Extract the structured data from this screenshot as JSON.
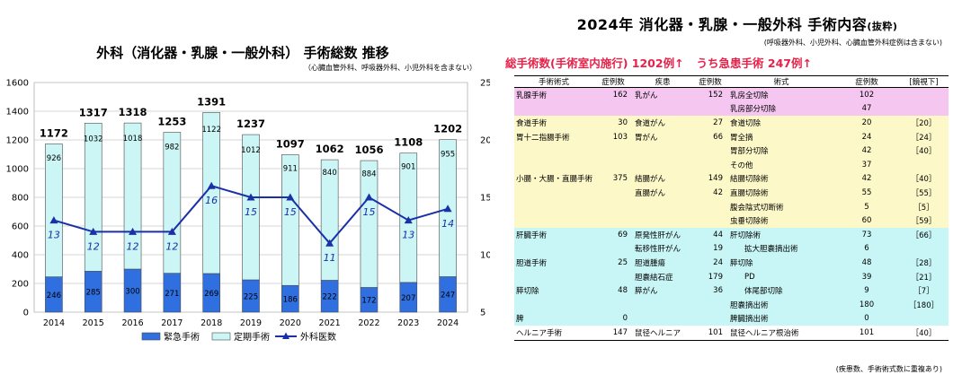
{
  "chart_data": {
    "type": "bar",
    "title": "外科（消化器・乳腺・一般外科） 手術総数 推移",
    "subtitle": "（心臓血管外科、呼吸器外科、小児外科を含まない）",
    "categories": [
      "2014",
      "2015",
      "2016",
      "2017",
      "2018",
      "2019",
      "2020",
      "2021",
      "2022",
      "2023",
      "2024"
    ],
    "series": [
      {
        "name": "緊急手術",
        "kind": "bar",
        "stack": "total",
        "color": "#2f6fe0",
        "values": [
          246,
          285,
          300,
          271,
          269,
          225,
          186,
          222,
          172,
          207,
          247
        ]
      },
      {
        "name": "定期手術",
        "kind": "bar",
        "stack": "total",
        "color": "#ccf5f5",
        "values": [
          926,
          1032,
          1018,
          982,
          1122,
          1012,
          911,
          840,
          884,
          901,
          955
        ]
      },
      {
        "name": "外科医数",
        "kind": "line",
        "axis": "right",
        "color": "#1a2fa8",
        "values": [
          13,
          12,
          12,
          12,
          16,
          15,
          15,
          11,
          15,
          13,
          14
        ]
      }
    ],
    "totals": [
      1172,
      1317,
      1318,
      1253,
      1391,
      1237,
      1097,
      1062,
      1056,
      1108,
      1202
    ],
    "ylim": [
      0,
      1600
    ],
    "yticks": [
      0,
      200,
      400,
      600,
      800,
      1000,
      1200,
      1400,
      1600
    ],
    "y2lim": [
      5,
      25
    ],
    "y2ticks": [
      5,
      10,
      15,
      20,
      25
    ],
    "grid": true,
    "legend": "bottom"
  },
  "table": {
    "title_main": "2024年 消化器・乳腺・一般外科 手術内容",
    "title_suffix": "(抜粋)",
    "note": "(呼吸器外科、小児外科、心臓血管外科症例は含まない)",
    "summary_1": "総手術数(手術室内施行) 1202例↑",
    "summary_2": "うち急患手術 247例↑",
    "headers": [
      "手術術式",
      "症例数",
      "疾患",
      "症例数",
      "術式",
      "症例数",
      "[鏡視下]"
    ],
    "rows": [
      {
        "g": "pink",
        "c": [
          "乳腺手術",
          "162",
          "乳がん",
          "152",
          "乳房全切除",
          "102",
          ""
        ]
      },
      {
        "g": "pink",
        "c": [
          "",
          "",
          "",
          "",
          "乳房部分切除",
          "47",
          ""
        ]
      },
      {
        "g": "yellow",
        "c": [
          "食道手術",
          "30",
          "食道がん",
          "27",
          "食道切除",
          "20",
          "［20］"
        ]
      },
      {
        "g": "yellow",
        "c": [
          "胃十二指腸手術",
          "103",
          "胃がん",
          "66",
          "胃全摘",
          "24",
          "［24］"
        ]
      },
      {
        "g": "yellow",
        "c": [
          "",
          "",
          "",
          "",
          "胃部分切除",
          "42",
          "［40］"
        ]
      },
      {
        "g": "yellow",
        "c": [
          "",
          "",
          "",
          "",
          "その他",
          "37",
          ""
        ]
      },
      {
        "g": "yellow",
        "c": [
          "小腸・大腸・直腸手術",
          "375",
          "結腸がん",
          "149",
          "結腸切除術",
          "42",
          "［40］"
        ]
      },
      {
        "g": "yellow",
        "c": [
          "",
          "",
          "直腸がん",
          "42",
          "直腸切除術",
          "55",
          "［55］"
        ]
      },
      {
        "g": "yellow",
        "c": [
          "",
          "",
          "",
          "",
          "腹会陰式切断術",
          "5",
          "［5］"
        ]
      },
      {
        "g": "yellow",
        "c": [
          "",
          "",
          "",
          "",
          "虫垂切除術",
          "60",
          "［59］"
        ]
      },
      {
        "g": "cyan",
        "c": [
          "肝臓手術",
          "69",
          "原発性肝がん",
          "44",
          "肝切除術",
          "73",
          "［66］"
        ]
      },
      {
        "g": "cyan",
        "c": [
          "",
          "",
          "転移性肝がん",
          "19",
          "拡大胆嚢摘出術",
          "6",
          ""
        ],
        "ind": true
      },
      {
        "g": "cyan",
        "c": [
          "胆道手術",
          "25",
          "胆道腫瘍",
          "24",
          "膵切除",
          "48",
          "［28］"
        ]
      },
      {
        "g": "cyan",
        "c": [
          "",
          "",
          "胆嚢結石症",
          "179",
          "PD",
          "39",
          "［21］"
        ],
        "ind": true
      },
      {
        "g": "cyan",
        "c": [
          "膵切除",
          "48",
          "膵がん",
          "36",
          "体尾部切除",
          "9",
          "［7］"
        ],
        "ind": true
      },
      {
        "g": "cyan",
        "c": [
          "",
          "",
          "",
          "",
          "胆嚢摘出術",
          "180",
          "［180］"
        ]
      },
      {
        "g": "cyan",
        "c": [
          "脾",
          "0",
          "",
          "",
          "脾臓摘出術",
          "0",
          ""
        ]
      },
      {
        "g": "white",
        "c": [
          "ヘルニア手術",
          "147",
          "鼠径ヘルニア",
          "101",
          "鼠径ヘルニア根治術",
          "101",
          "［40］"
        ]
      }
    ],
    "footer": "(疾患数、手術術式数に重複あり)"
  }
}
